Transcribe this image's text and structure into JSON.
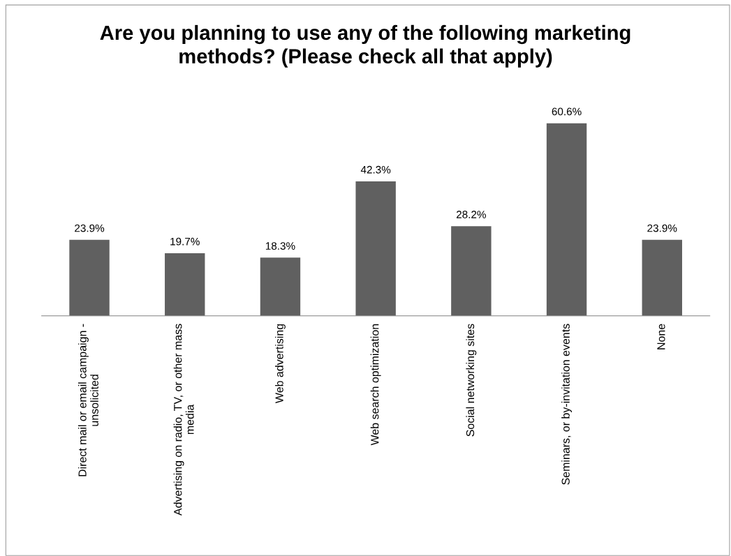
{
  "chart_data": {
    "type": "bar",
    "title": "Are you planning to use any of the following marketing\nmethods? (Please check all that apply)",
    "categories": [
      "Direct mail or email campaign -\nunsolicited",
      "Advertising on radio, TV, or other mass\nmedia",
      "Web advertising",
      "Web search optimization",
      "Social networking sites",
      "Seminars, or by-invitation events",
      "None"
    ],
    "values": [
      23.9,
      19.7,
      18.3,
      42.3,
      28.2,
      60.6,
      23.9
    ],
    "value_labels": [
      "23.9%",
      "19.7%",
      "18.3%",
      "42.3%",
      "28.2%",
      "60.6%",
      "23.9%"
    ],
    "color": "#606060",
    "tick_labels": "x",
    "grid": false,
    "legend": false
  }
}
